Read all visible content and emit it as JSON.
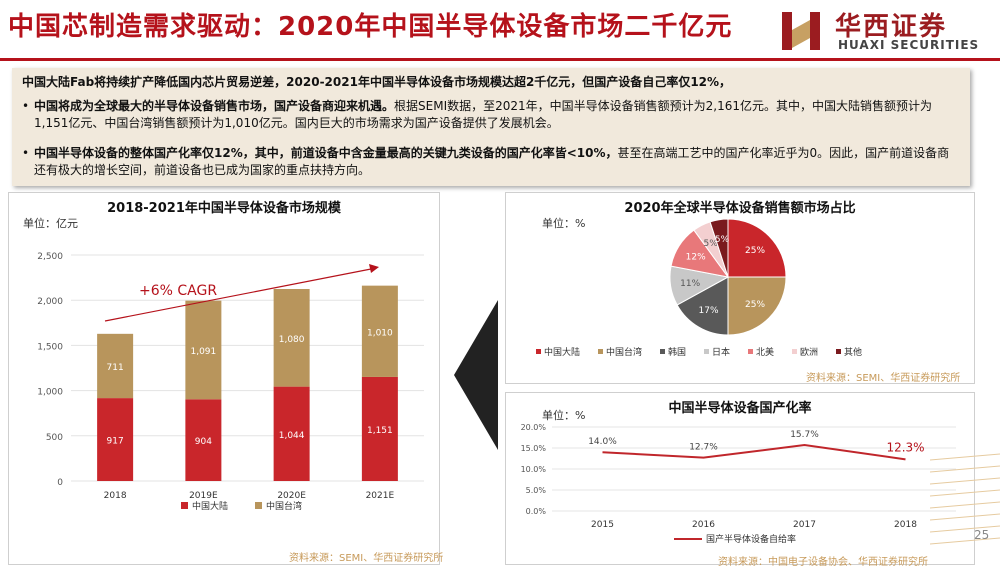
{
  "header": {
    "title": "中国芯制造需求驱动：2020年中国半导体设备市场二千亿元",
    "logo_cn": "华西证券",
    "logo_en": "HUAXI SECURITIES"
  },
  "summary": {
    "lead": "中国大陆Fab将持续扩产降低国内芯片贸易逆差，2020-2021年中国半导体设备市场规模达超2千亿元，但国产设备自己率仅12%，",
    "bullet1_bold": "中国将成为全球最大的半导体设备销售市场，国产设备商迎来机遇。",
    "bullet1_text": "根据SEMI数据，至2021年，中国半导体设备销售额预计为2,161亿元。其中，中国大陆销售额预计为1,151亿元、中国台湾销售额预计为1,010亿元。国内巨大的市场需求为国产设备提供了发展机会。",
    "bullet2_bold": "中国半导体设备的整体国产化率仅12%，其中，前道设备中含金量最高的关键九类设备的国产化率皆<10%，",
    "bullet2_text": "甚至在高端工艺中的国产化率近乎为0。因此，国产前道设备商还有极大的增长空间，前道设备也已成为国家的重点扶持方向。"
  },
  "colors": {
    "brand_red": "#b5121b",
    "mainland_red": "#c9262b",
    "taiwan_gold": "#b8955c",
    "korea_gray": "#595959",
    "japan_gray": "#c8c8c8",
    "na_pink": "#e8787a",
    "europe_pink": "#f3cfd0",
    "other_darkred": "#7a1a1e"
  },
  "page_number": "25",
  "chart_data": [
    {
      "type": "bar",
      "title": "2018-2021年中国半导体设备市场规模",
      "unit_label": "单位：亿元",
      "annotation": "+6% CAGR",
      "categories": [
        "2018",
        "2019E",
        "2020E",
        "2021E"
      ],
      "series": [
        {
          "name": "中国大陆",
          "values": [
            917,
            904,
            1044,
            1151
          ],
          "labels": [
            "917",
            "904",
            "1,044",
            "1,151"
          ]
        },
        {
          "name": "中国台湾",
          "values": [
            711,
            1091,
            1080,
            1010
          ],
          "labels": [
            "711",
            "1,091",
            "1,080",
            "1,010"
          ]
        }
      ],
      "y_ticks": [
        "0",
        "500",
        "1,000",
        "1,500",
        "2,000",
        "2,500"
      ],
      "ylim": [
        0,
        2500
      ],
      "stacked": true,
      "source": "资料来源：SEMI、华西证券研究所"
    },
    {
      "type": "pie",
      "title": "2020年全球半导体设备销售额市场占比",
      "unit_label": "单位：%",
      "slices": [
        {
          "name": "中国大陆",
          "value": 25,
          "label": "25%"
        },
        {
          "name": "中国台湾",
          "value": 25,
          "label": "25%"
        },
        {
          "name": "韩国",
          "value": 17,
          "label": "17%"
        },
        {
          "name": "日本",
          "value": 11,
          "label": "11%"
        },
        {
          "name": "北美",
          "value": 12,
          "label": "12%"
        },
        {
          "name": "欧洲",
          "value": 5,
          "label": "5%"
        },
        {
          "name": "其他",
          "value": 5,
          "label": "5%"
        }
      ],
      "legend_position": "bottom",
      "source": "资料来源：SEMI、华西证券研究所"
    },
    {
      "type": "line",
      "title": "中国半导体设备国产化率",
      "unit_label": "单位：%",
      "x": [
        "2015",
        "2016",
        "2017",
        "2018"
      ],
      "series": [
        {
          "name": "国产半导体设备自给率",
          "values": [
            14.0,
            12.7,
            15.7,
            12.3
          ],
          "labels": [
            "14.0%",
            "12.7%",
            "15.7%",
            "12.3%"
          ]
        }
      ],
      "y_ticks": [
        "0.0%",
        "5.0%",
        "10.0%",
        "15.0%",
        "20.0%"
      ],
      "ylim": [
        0,
        20
      ],
      "legend_position": "bottom",
      "source": "资料来源：中国电子设备协会、华西证券研究所"
    }
  ]
}
